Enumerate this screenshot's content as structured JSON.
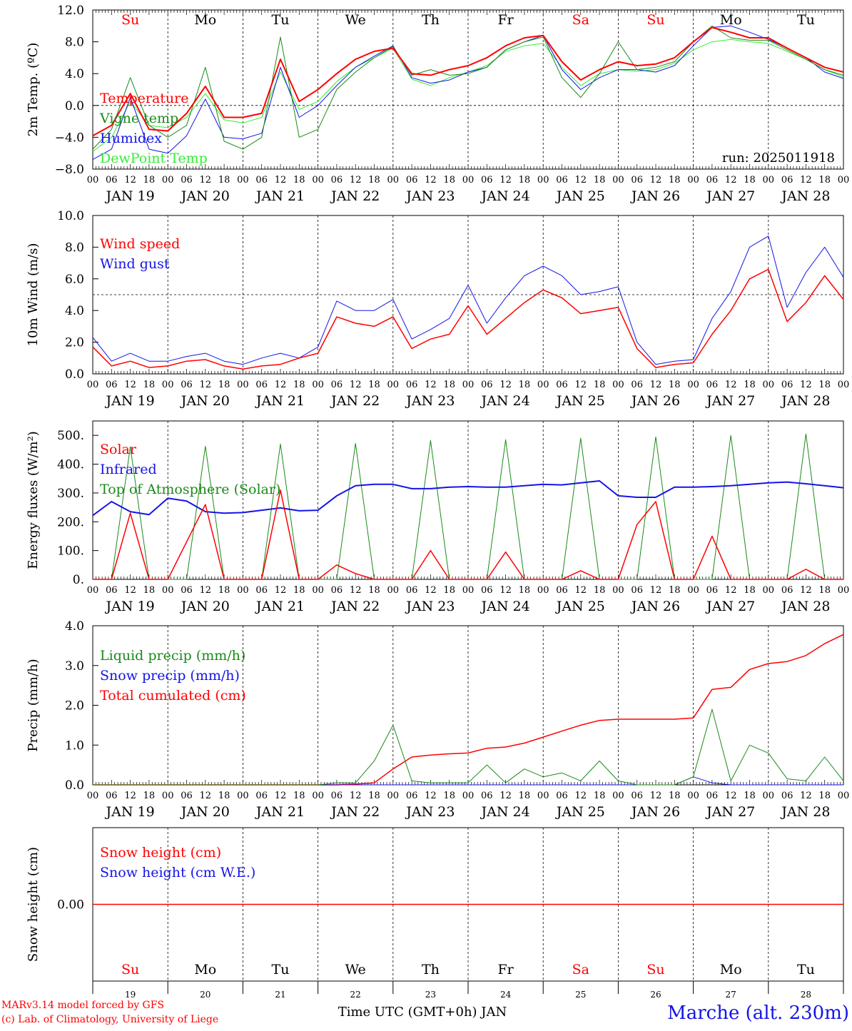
{
  "days": {
    "abbr": [
      "Su",
      "Mo",
      "Tu",
      "We",
      "Th",
      "Fr",
      "Sa",
      "Su",
      "Mo",
      "Tu"
    ],
    "weekend": [
      true,
      false,
      false,
      false,
      false,
      false,
      true,
      true,
      false,
      false
    ],
    "dates": [
      "JAN 19",
      "JAN 20",
      "JAN 21",
      "JAN 22",
      "JAN 23",
      "JAN 24",
      "JAN 25",
      "JAN 26",
      "JAN 27",
      "JAN 28"
    ],
    "numbers": [
      "19",
      "20",
      "21",
      "22",
      "23",
      "24",
      "25",
      "26",
      "27",
      "28"
    ],
    "hour_ticks": [
      "00",
      "06",
      "12",
      "18"
    ],
    "end_tick": "00"
  },
  "colors": {
    "red": "#ff0000",
    "green": "#1a8a1a",
    "blue": "#1414e6",
    "lightgreen": "#33ee33",
    "weekend": "#ff0000",
    "weekday": "#000000"
  },
  "footer": {
    "credit1": "MARv3.14 model forced by GFS",
    "credit2": "(c) Lab. of Climatology, University of Liege",
    "xaxis": "Time UTC (GMT+0h) JAN",
    "station": "Marche (alt. 230m)"
  },
  "chart_data": [
    {
      "type": "line",
      "ylabel": "2m Temp. (ºC)",
      "ylim": [
        -8,
        12
      ],
      "yticks": [
        "12.0",
        "8.0",
        "4.0",
        "0.0",
        "−4.0",
        "−8.0"
      ],
      "annotation": "run: 2025011918",
      "legend": [
        "Temperature",
        "Vigne temp",
        "Humidex",
        "DewPoint Temp"
      ],
      "x": [
        0,
        6,
        12,
        18,
        24,
        30,
        36,
        42,
        48,
        54,
        60,
        66,
        72,
        78,
        84,
        90,
        96,
        102,
        108,
        114,
        120,
        126,
        132,
        138,
        144,
        150,
        156,
        162,
        168,
        174,
        180,
        186,
        192,
        198,
        204,
        210,
        216,
        222,
        228,
        234,
        240
      ],
      "series": [
        {
          "name": "Temperature",
          "values": [
            -3.8,
            -2.5,
            1.5,
            -3.0,
            -3.2,
            -1.0,
            2.4,
            -1.5,
            -1.5,
            -1.0,
            5.8,
            0.5,
            2.0,
            4.0,
            5.8,
            6.8,
            7.2,
            4.0,
            3.8,
            4.5,
            5.0,
            6.0,
            7.5,
            8.5,
            8.8,
            5.5,
            3.2,
            4.5,
            5.5,
            5.0,
            5.2,
            6.0,
            8.0,
            9.8,
            9.2,
            8.5,
            8.5,
            7.2,
            6.0,
            4.8,
            4.2
          ]
        },
        {
          "name": "Vigne temp",
          "values": [
            -5.5,
            -3.0,
            3.5,
            -2.5,
            -4.0,
            -2.5,
            4.8,
            -4.5,
            -5.5,
            -4.0,
            8.6,
            -4.0,
            -3.0,
            2.0,
            4.2,
            6.0,
            7.4,
            3.8,
            4.5,
            3.8,
            4.0,
            4.8,
            7.0,
            8.0,
            8.6,
            3.5,
            1.0,
            4.0,
            8.0,
            4.5,
            4.8,
            5.5,
            8.0,
            10.0,
            8.5,
            8.2,
            8.2,
            7.0,
            5.8,
            4.5,
            3.8
          ]
        },
        {
          "name": "Humidex",
          "values": [
            -6.8,
            -5.5,
            1.0,
            -5.5,
            -6.0,
            -3.8,
            0.8,
            -4.0,
            -4.2,
            -3.5,
            4.8,
            -1.5,
            0.0,
            2.5,
            4.8,
            6.2,
            7.5,
            3.5,
            2.8,
            3.2,
            4.2,
            4.8,
            7.0,
            8.0,
            8.8,
            4.5,
            2.0,
            3.5,
            4.5,
            4.5,
            4.2,
            5.0,
            7.5,
            9.8,
            10.0,
            9.2,
            8.3,
            7.2,
            6.0,
            4.2,
            3.4
          ]
        },
        {
          "name": "DewPoint Temp",
          "values": [
            -5.8,
            -4.0,
            0.5,
            -2.5,
            -2.8,
            -1.5,
            1.5,
            -1.8,
            -2.2,
            -1.5,
            4.2,
            -0.5,
            0.5,
            3.0,
            4.8,
            6.0,
            7.2,
            3.3,
            2.5,
            3.5,
            4.2,
            5.0,
            6.8,
            7.5,
            7.8,
            4.8,
            2.5,
            4.0,
            4.5,
            4.3,
            4.5,
            5.3,
            7.0,
            8.0,
            8.3,
            8.0,
            7.8,
            6.8,
            5.8,
            4.5,
            3.6
          ]
        }
      ],
      "reference_line": 0
    },
    {
      "type": "line",
      "ylabel": "10m Wind (m/s)",
      "ylim": [
        0,
        10
      ],
      "yticks": [
        "10.0",
        "8.0",
        "6.0",
        "4.0",
        "2.0",
        "0.0"
      ],
      "legend": [
        "Wind speed",
        "Wind gust"
      ],
      "x": [
        0,
        6,
        12,
        18,
        24,
        30,
        36,
        42,
        48,
        54,
        60,
        66,
        72,
        78,
        84,
        90,
        96,
        102,
        108,
        114,
        120,
        126,
        132,
        138,
        144,
        150,
        156,
        162,
        168,
        174,
        180,
        186,
        192,
        198,
        204,
        210,
        216,
        222,
        228,
        234,
        240
      ],
      "series": [
        {
          "name": "Wind speed",
          "values": [
            1.7,
            0.5,
            0.8,
            0.4,
            0.5,
            0.8,
            0.9,
            0.5,
            0.3,
            0.5,
            0.6,
            1.0,
            1.3,
            3.6,
            3.2,
            3.0,
            3.6,
            1.6,
            2.2,
            2.5,
            4.3,
            2.5,
            3.5,
            4.5,
            5.3,
            4.8,
            3.8,
            4.0,
            4.2,
            1.6,
            0.4,
            0.6,
            0.7,
            2.5,
            4.0,
            6.0,
            6.6,
            3.3,
            4.5,
            6.2,
            4.7
          ]
        },
        {
          "name": "Wind gust",
          "values": [
            2.3,
            0.8,
            1.3,
            0.8,
            0.8,
            1.1,
            1.3,
            0.8,
            0.6,
            1.0,
            1.3,
            1.0,
            1.7,
            4.6,
            4.0,
            4.0,
            4.7,
            2.2,
            2.8,
            3.5,
            5.6,
            3.2,
            4.8,
            6.2,
            6.8,
            6.2,
            5.0,
            5.2,
            5.5,
            2.0,
            0.6,
            0.8,
            0.9,
            3.5,
            5.2,
            8.0,
            8.7,
            4.2,
            6.4,
            8.0,
            6.1
          ]
        }
      ],
      "reference_line": 5
    },
    {
      "type": "line",
      "ylabel": "Energy fluxes (W/m²)",
      "ylim": [
        0,
        550
      ],
      "yticks": [
        "500.",
        "400.",
        "300.",
        "200.",
        "100.",
        "0."
      ],
      "legend": [
        "Solar",
        "Infrared",
        "Top of Atmosphere (Solar)"
      ],
      "x": [
        0,
        6,
        12,
        18,
        24,
        30,
        36,
        42,
        48,
        54,
        60,
        66,
        72,
        78,
        84,
        90,
        96,
        102,
        108,
        114,
        120,
        126,
        132,
        138,
        144,
        150,
        156,
        162,
        168,
        174,
        180,
        186,
        192,
        198,
        204,
        210,
        216,
        222,
        228,
        234,
        240
      ],
      "series": [
        {
          "name": "Solar",
          "values": [
            0,
            0,
            230,
            0,
            0,
            130,
            260,
            0,
            0,
            0,
            310,
            0,
            0,
            50,
            20,
            0,
            0,
            0,
            100,
            0,
            0,
            0,
            95,
            0,
            0,
            0,
            30,
            0,
            0,
            190,
            270,
            0,
            0,
            150,
            0,
            0,
            0,
            0,
            35,
            0,
            0
          ]
        },
        {
          "name": "Infrared",
          "values": [
            222,
            270,
            235,
            225,
            282,
            272,
            235,
            230,
            232,
            240,
            248,
            238,
            240,
            290,
            325,
            330,
            330,
            315,
            315,
            320,
            322,
            320,
            320,
            325,
            330,
            328,
            335,
            342,
            290,
            285,
            285,
            320,
            320,
            322,
            325,
            330,
            335,
            338,
            332,
            325,
            318
          ]
        },
        {
          "name": "Top of Atmosphere (Solar)",
          "values": [
            0,
            0,
            460,
            0,
            0,
            0,
            462,
            0,
            0,
            0,
            470,
            0,
            0,
            0,
            472,
            0,
            0,
            0,
            482,
            0,
            0,
            0,
            485,
            0,
            0,
            0,
            490,
            0,
            0,
            0,
            495,
            0,
            0,
            0,
            500,
            0,
            0,
            0,
            505,
            0,
            0
          ]
        }
      ]
    },
    {
      "type": "line",
      "ylabel": "Precip (mm/h)",
      "ylim": [
        0,
        4
      ],
      "yticks": [
        "4.0",
        "3.0",
        "2.0",
        "1.0",
        "0.0"
      ],
      "legend": [
        "Liquid precip (mm/h)",
        "Snow precip (mm/h)",
        "Total cumulated (cm)"
      ],
      "x": [
        0,
        6,
        12,
        18,
        24,
        30,
        36,
        42,
        48,
        54,
        60,
        66,
        72,
        78,
        84,
        90,
        96,
        102,
        108,
        114,
        120,
        126,
        132,
        138,
        144,
        150,
        156,
        162,
        168,
        174,
        180,
        186,
        192,
        198,
        204,
        210,
        216,
        222,
        228,
        234,
        240
      ],
      "series": [
        {
          "name": "Liquid precip (mm/h)",
          "values": [
            0,
            0,
            0,
            0,
            0,
            0,
            0,
            0,
            0,
            0,
            0,
            0,
            0,
            0.05,
            0.05,
            0.6,
            1.5,
            0.1,
            0.05,
            0.05,
            0.05,
            0.5,
            0.05,
            0.4,
            0.2,
            0.3,
            0.1,
            0.6,
            0.1,
            0,
            0,
            0,
            0.2,
            1.9,
            0.1,
            1.0,
            0.8,
            0.15,
            0.1,
            0.7,
            0.1
          ]
        },
        {
          "name": "Snow precip (mm/h)",
          "values": [
            0,
            0,
            0,
            0,
            0,
            0,
            0,
            0,
            0,
            0,
            0,
            0,
            0,
            0,
            0,
            0,
            0,
            0,
            0,
            0,
            0,
            0,
            0,
            0,
            0,
            0,
            0,
            0,
            0,
            0,
            0,
            0,
            0.2,
            0.05,
            0,
            0,
            0,
            0,
            0,
            0,
            0
          ]
        },
        {
          "name": "Total cumulated (cm)",
          "values": [
            0,
            0,
            0,
            0,
            0,
            0,
            0,
            0,
            0,
            0,
            0,
            0,
            0,
            0,
            0.02,
            0.05,
            0.4,
            0.7,
            0.75,
            0.78,
            0.8,
            0.92,
            0.95,
            1.05,
            1.2,
            1.35,
            1.5,
            1.62,
            1.65,
            1.65,
            1.65,
            1.65,
            1.68,
            2.4,
            2.45,
            2.9,
            3.05,
            3.1,
            3.25,
            3.55,
            3.78
          ]
        }
      ]
    },
    {
      "type": "line",
      "ylabel": "Snow height (cm)",
      "ylim": [
        -1,
        1
      ],
      "yticks": [
        "0.00"
      ],
      "legend": [
        "Snow height (cm)",
        "Snow height (cm W.E.)"
      ],
      "x": [
        0,
        240
      ],
      "series": [
        {
          "name": "Snow height (cm)",
          "values": [
            0,
            0
          ]
        },
        {
          "name": "Snow height (cm W.E.)",
          "values": [
            0,
            0
          ]
        }
      ]
    }
  ]
}
